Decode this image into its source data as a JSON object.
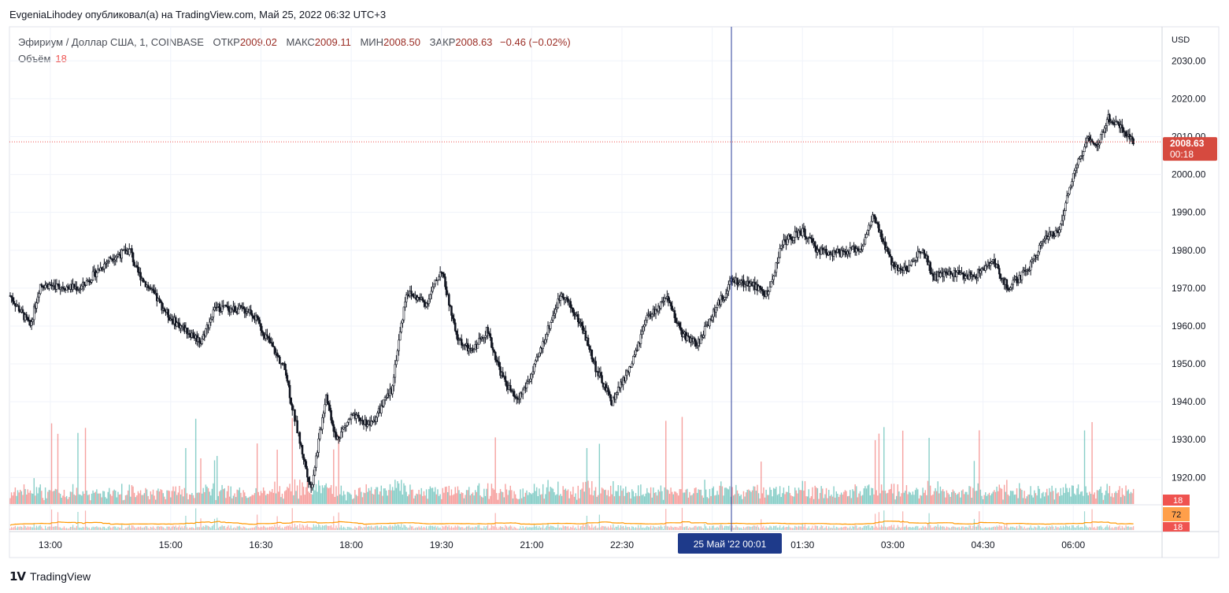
{
  "header": {
    "publication": "EvgeniaLihodey опубликовал(а) на TradingView.com, Май 25, 2022 06:32 UTC+3"
  },
  "legend": {
    "symbol": "Эфириум / Доллар США, 1, COINBASE",
    "open_label": "ОТКР",
    "open": "2009.02",
    "high_label": "МАКС",
    "high": "2009.11",
    "low_label": "МИН",
    "low": "2008.50",
    "close_label": "ЗАКР",
    "close": "2008.63",
    "change": "−0.46 (−0.02%)",
    "volume_label": "Объём",
    "volume": "18"
  },
  "price_axis": {
    "currency": "USD",
    "current_price": "2008.63",
    "countdown": "00:18",
    "volume_badge": "18",
    "ma_badge": "72",
    "volume_badge_2": "18"
  },
  "crosshair_label": "25 Май '22   00:01",
  "brand": "TradingView",
  "colors": {
    "up": "#26a69a",
    "down": "#ef5350",
    "candle": "#131722",
    "crosshair": "#2a3d99",
    "price_line": "#ef5350",
    "ma": "#ff9800"
  },
  "chart_data": {
    "type": "candlestick",
    "symbol": "ETHUSD",
    "exchange": "COINBASE",
    "interval": "1",
    "x_ticks": [
      "13:00",
      "15:00",
      "16:30",
      "18:00",
      "19:30",
      "21:00",
      "22:30",
      "00:00",
      "01:30",
      "03:00",
      "04:30",
      "06:00"
    ],
    "y_ticks": [
      1920,
      1930,
      1940,
      1950,
      1960,
      1970,
      1980,
      1990,
      2000,
      2010,
      2020,
      2030
    ],
    "ylim": [
      1913,
      2039
    ],
    "grid": true,
    "price_path": [
      [
        "12:20",
        1968
      ],
      [
        "12:40",
        1960
      ],
      [
        "12:50",
        1971
      ],
      [
        "13:30",
        1970
      ],
      [
        "14:00",
        1978
      ],
      [
        "14:20",
        1980
      ],
      [
        "14:25",
        1975
      ],
      [
        "15:00",
        1962
      ],
      [
        "15:30",
        1956
      ],
      [
        "15:45",
        1965
      ],
      [
        "16:20",
        1964
      ],
      [
        "16:40",
        1955
      ],
      [
        "16:55",
        1948
      ],
      [
        "17:00",
        1940
      ],
      [
        "17:10",
        1928
      ],
      [
        "17:20",
        1917
      ],
      [
        "17:35",
        1942
      ],
      [
        "17:45",
        1930
      ],
      [
        "18:00",
        1936
      ],
      [
        "18:20",
        1934
      ],
      [
        "18:40",
        1943
      ],
      [
        "18:55",
        1969
      ],
      [
        "19:15",
        1966
      ],
      [
        "19:30",
        1975
      ],
      [
        "19:45",
        1957
      ],
      [
        "20:00",
        1953
      ],
      [
        "20:15",
        1959
      ],
      [
        "20:30",
        1947
      ],
      [
        "20:45",
        1940
      ],
      [
        "21:00",
        1947
      ],
      [
        "21:20",
        1962
      ],
      [
        "21:30",
        1969
      ],
      [
        "21:50",
        1960
      ],
      [
        "22:05",
        1948
      ],
      [
        "22:20",
        1940
      ],
      [
        "22:40",
        1950
      ],
      [
        "22:55",
        1962
      ],
      [
        "23:15",
        1967
      ],
      [
        "23:30",
        1958
      ],
      [
        "23:45",
        1955
      ],
      [
        "00:00",
        1963
      ],
      [
        "00:20",
        1972
      ],
      [
        "00:40",
        1971
      ],
      [
        "00:55",
        1968
      ],
      [
        "01:10",
        1982
      ],
      [
        "01:30",
        1985
      ],
      [
        "01:45",
        1980
      ],
      [
        "02:10",
        1979
      ],
      [
        "02:30",
        1981
      ],
      [
        "02:40",
        1989
      ],
      [
        "03:00",
        1976
      ],
      [
        "03:15",
        1975
      ],
      [
        "03:30",
        1981
      ],
      [
        "03:40",
        1973
      ],
      [
        "04:00",
        1974
      ],
      [
        "04:20",
        1973
      ],
      [
        "04:40",
        1977
      ],
      [
        "04:55",
        1970
      ],
      [
        "05:15",
        1975
      ],
      [
        "05:30",
        1983
      ],
      [
        "05:45",
        1985
      ],
      [
        "06:00",
        2000
      ],
      [
        "06:15",
        2010
      ],
      [
        "06:25",
        2008
      ],
      [
        "06:35",
        2015
      ],
      [
        "06:50",
        2012
      ],
      [
        "07:00",
        2008.63
      ]
    ],
    "last": {
      "open": 2009.02,
      "high": 2009.11,
      "low": 2008.5,
      "close": 2008.63,
      "volume": 18
    },
    "volume_ma": 72
  }
}
